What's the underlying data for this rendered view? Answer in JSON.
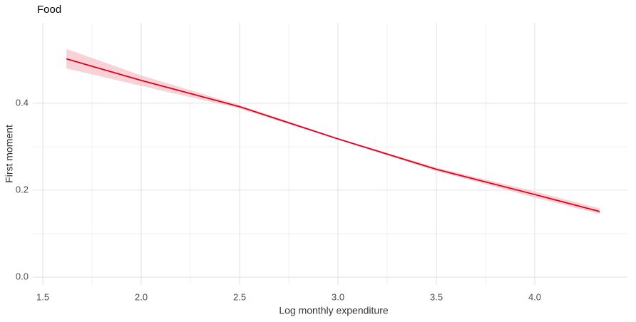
{
  "chart_data": {
    "type": "line",
    "title": "Food",
    "x_label": "Log monthly expenditure",
    "y_label": "First moment",
    "x": [
      1.62,
      2.0,
      2.5,
      3.0,
      3.5,
      4.0,
      4.33
    ],
    "series": [
      {
        "color": "#e3001b",
        "band_color": "#f4a6b2",
        "values": [
          0.502,
          0.4525,
          0.392,
          0.318,
          0.248,
          0.19,
          0.151
        ],
        "lower": [
          0.48,
          0.44,
          0.388,
          0.316,
          0.244,
          0.183,
          0.145
        ],
        "upper": [
          0.525,
          0.464,
          0.396,
          0.32,
          0.252,
          0.197,
          0.158
        ]
      }
    ],
    "xlim": [
      1.449,
      4.471
    ],
    "ylim": [
      -0.018,
      0.585
    ],
    "xticks": [
      1.5,
      {
        "value": 2.0,
        "label": "2.0"
      },
      2.5,
      {
        "value": 3.0,
        "label": "3.0"
      },
      3.5,
      {
        "value": 4.0,
        "label": "4.0"
      }
    ],
    "yticks": [
      {
        "value": 0,
        "label": "0.0"
      },
      0.2,
      0.4
    ],
    "grid": true
  }
}
